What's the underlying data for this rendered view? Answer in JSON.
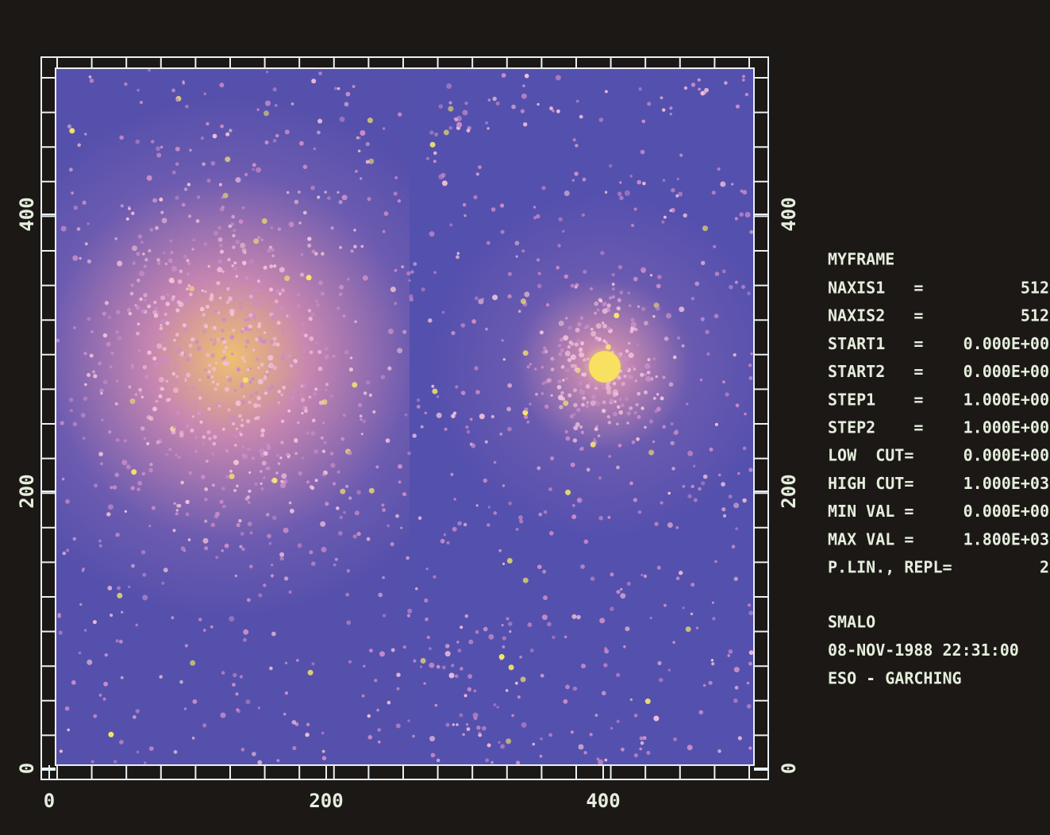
{
  "axes": {
    "x_ticks": [
      0,
      200,
      400
    ],
    "y_left_ticks": [
      0,
      200,
      400
    ],
    "y_right_ticks": [
      0,
      200,
      400
    ]
  },
  "info": {
    "frame": "MYFRAME",
    "rows": [
      {
        "key": "NAXIS1   =",
        "value": "512"
      },
      {
        "key": "NAXIS2   =",
        "value": "512"
      },
      {
        "key": "START1   =",
        "value": "0.000E+00"
      },
      {
        "key": "START2   =",
        "value": "0.000E+00"
      },
      {
        "key": "STEP1    =",
        "value": "1.000E+00"
      },
      {
        "key": "STEP2    =",
        "value": "1.000E+00"
      },
      {
        "key": "LOW  CUT=",
        "value": "0.000E+00"
      },
      {
        "key": "HIGH CUT=",
        "value": "1.000E+03"
      },
      {
        "key": "MIN VAL =",
        "value": "0.000E+00"
      },
      {
        "key": "MAX VAL =",
        "value": "1.800E+03"
      },
      {
        "key": "P.LIN., REPL=",
        "value": "2"
      }
    ],
    "footer": [
      "SMALO",
      "08-NOV-1988 22:31:00",
      "ESO - GARCHING"
    ]
  }
}
